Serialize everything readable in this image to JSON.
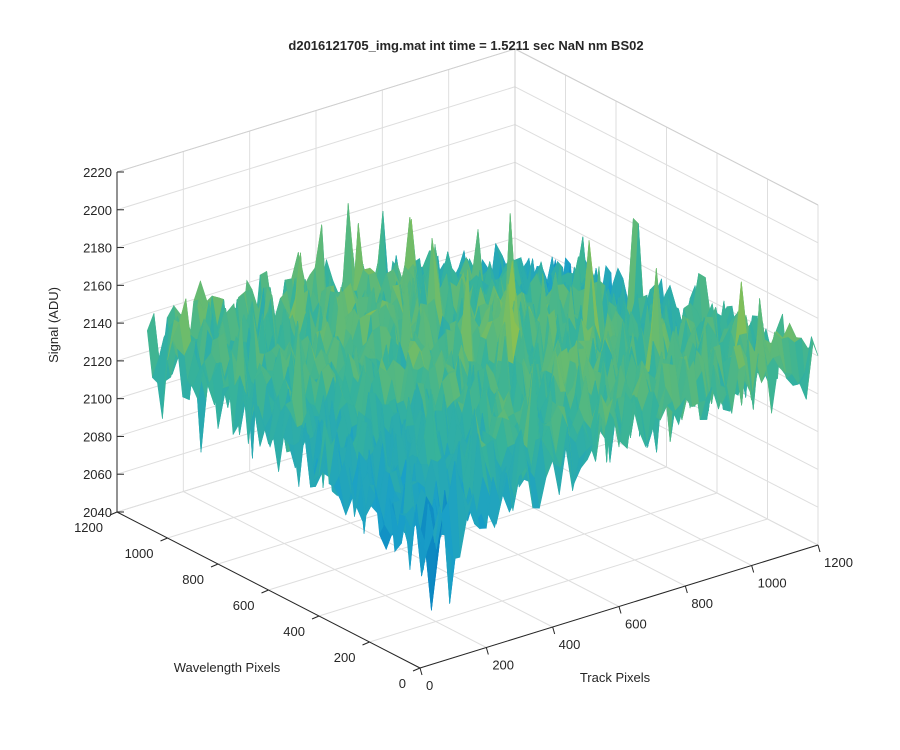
{
  "chart_data": {
    "type": "surface",
    "title": "d2016121705_img.mat int time = 1.5211 sec  NaN nm BS02",
    "xlabel": "Track Pixels",
    "ylabel": "Wavelength Pixels",
    "zlabel": "Signal (ADU)",
    "xlim": [
      0,
      1200
    ],
    "ylim": [
      0,
      1200
    ],
    "zlim": [
      2040,
      2220
    ],
    "x_ticks": [
      0,
      200,
      400,
      600,
      800,
      1000,
      1200
    ],
    "y_ticks": [
      0,
      200,
      400,
      600,
      800,
      1000,
      1200
    ],
    "z_ticks": [
      2040,
      2060,
      2080,
      2100,
      2120,
      2140,
      2160,
      2180,
      2200,
      2220
    ],
    "grid": true,
    "colormap": [
      "#0072bd",
      "#1aa0c8",
      "#37b39a",
      "#8fc14e",
      "#e1b632",
      "#f5c22a"
    ],
    "surface": {
      "x_range": [
        0,
        1200
      ],
      "y_range": [
        0,
        1080
      ],
      "typical_min": 2080,
      "typical_max": 2160,
      "peak_max": 2215,
      "trough_min": 2062,
      "mean_level": 2130,
      "description_of_shape": "noisy saddle"
    }
  }
}
